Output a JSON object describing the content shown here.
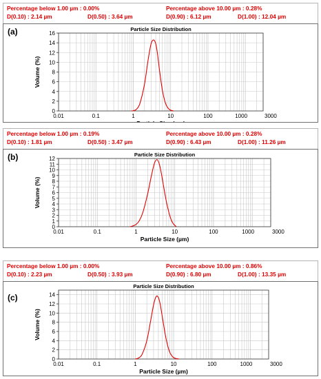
{
  "colors": {
    "curve": "#e00000",
    "stats_text": "#e00000",
    "grid": "#c8c8c8"
  },
  "panels": [
    {
      "letter": "(a)",
      "stats": {
        "below": "Percentage below 1.00 µm : 0.00%",
        "above": "Percentage above 10.00 µm : 0.28%",
        "d10": "D(0.10) : 2.14 µm",
        "d50": "D(0.50) : 3.64 µm",
        "d90": "D(0.90) : 6.12 µm",
        "d100": "D(1.00) : 12.04 µm"
      }
    },
    {
      "letter": "(b)",
      "stats": {
        "below": "Percentage below 1.00 µm : 0.19%",
        "above": "Percentage above 10.00 µm : 0.28%",
        "d10": "D(0.10) : 1.81 µm",
        "d50": "D(0.50) : 3.47 µm",
        "d90": "D(0.90) : 6.43 µm",
        "d100": "D(1.00) : 11.26 µm"
      }
    },
    {
      "letter": "(c)",
      "stats": {
        "below": "Percentage below 1.00 µm : 0.00%",
        "above": "Percentage above 10.00 µm : 0.86%",
        "d10": "D(0.10) : 2.23 µm",
        "d50": "D(0.50) : 3.93 µm",
        "d90": "D(0.90) : 6.80 µm",
        "d100": "D(1.00) : 13.35 µm"
      }
    }
  ],
  "chart_data": [
    {
      "type": "line",
      "title": "Particle Size Distribution",
      "xlabel": "Particle Size (µm)",
      "ylabel": "Volume (%)",
      "x_scale": "log",
      "xlim": [
        0.01,
        3000
      ],
      "ylim": [
        0,
        16
      ],
      "x_ticks": [
        "0.01",
        "0.1",
        "1",
        "10",
        "100",
        "1000",
        "3000"
      ],
      "y_ticks": [
        "0",
        "2",
        "4",
        "6",
        "8",
        "10",
        "12",
        "14",
        "16"
      ],
      "grid": true,
      "series": [
        {
          "x": [
            0.9,
            1.0,
            1.2,
            1.5,
            2.0,
            2.5,
            3.0,
            3.5,
            4.0,
            4.5,
            5.0,
            6.0,
            7.0,
            8.0,
            9.0,
            10.0,
            12.0
          ],
          "y": [
            0.0,
            0.05,
            0.3,
            1.5,
            5.5,
            10.5,
            13.8,
            14.6,
            13.8,
            11.5,
            8.6,
            4.3,
            2.0,
            0.9,
            0.4,
            0.15,
            0.0
          ]
        }
      ]
    },
    {
      "type": "line",
      "title": "Particle Size Distribution",
      "xlabel": "Particle Size (µm)",
      "ylabel": "Volume (%)",
      "x_scale": "log",
      "xlim": [
        0.01,
        3000
      ],
      "ylim": [
        0,
        12
      ],
      "x_ticks": [
        "0.01",
        "0.1",
        "1",
        "10",
        "100",
        "1000",
        "3000"
      ],
      "y_ticks": [
        "0",
        "1",
        "2",
        "3",
        "4",
        "5",
        "6",
        "7",
        "8",
        "9",
        "10",
        "11",
        "12"
      ],
      "grid": true,
      "series": [
        {
          "x": [
            0.7,
            0.8,
            1.0,
            1.2,
            1.5,
            2.0,
            2.5,
            3.0,
            3.5,
            4.0,
            4.5,
            5.0,
            6.0,
            7.0,
            8.0,
            9.0,
            10.0,
            11.0
          ],
          "y": [
            0.0,
            0.1,
            0.4,
            1.0,
            2.5,
            5.8,
            9.0,
            11.2,
            11.8,
            11.0,
            9.4,
            7.6,
            4.6,
            2.6,
            1.3,
            0.6,
            0.25,
            0.0
          ]
        }
      ]
    },
    {
      "type": "line",
      "title": "Particle Size Distribution",
      "xlabel": "Particle Size (µm)",
      "ylabel": "Volume (%)",
      "x_scale": "log",
      "xlim": [
        0.01,
        3000
      ],
      "ylim": [
        0,
        15
      ],
      "x_ticks": [
        "0.01",
        "0.1",
        "1",
        "10",
        "100",
        "1000",
        "3000"
      ],
      "y_ticks": [
        "0",
        "2",
        "4",
        "6",
        "8",
        "10",
        "12",
        "14"
      ],
      "grid": true,
      "series": [
        {
          "x": [
            1.0,
            1.2,
            1.5,
            2.0,
            2.5,
            3.0,
            3.5,
            4.0,
            4.5,
            5.0,
            6.0,
            7.0,
            8.0,
            9.0,
            10.0,
            12.0,
            14.0
          ],
          "y": [
            0.0,
            0.2,
            1.0,
            4.0,
            8.2,
            11.8,
            13.6,
            13.4,
            11.8,
            9.5,
            5.5,
            2.9,
            1.4,
            0.7,
            0.3,
            0.08,
            0.0
          ]
        }
      ]
    }
  ]
}
